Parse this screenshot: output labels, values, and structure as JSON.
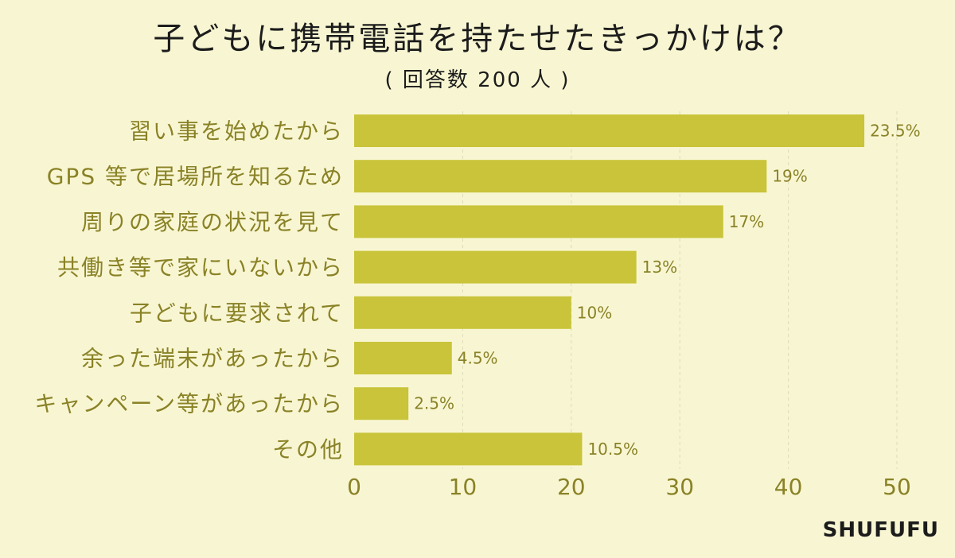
{
  "header": {
    "title": "子どもに携帯電話を持たせたきっかけは？",
    "subtitle": "( 回答数 200 人 )"
  },
  "source": "SHUFUFU",
  "colors": {
    "background": "#f8f6d2",
    "bar": "#c9c43a",
    "label": "#8a8227"
  },
  "chart_data": {
    "type": "bar",
    "orientation": "horizontal",
    "title": "子どもに携帯電話を持たせたきっかけは？",
    "subtitle": "( 回答数 200 人 )",
    "categories": [
      "習い事を始めたから",
      "GPS 等で居場所を知るため",
      "周りの家庭の状況を見て",
      "共働き等で家にいないから",
      "子どもに要求されて",
      "余った端末があったから",
      "キャンペーン等があったから",
      "その他"
    ],
    "values": [
      47,
      38,
      34,
      26,
      20,
      9,
      5,
      21
    ],
    "value_labels": [
      "23.5%",
      "19%",
      "17%",
      "13%",
      "10%",
      "4.5%",
      "2.5%",
      "10.5%"
    ],
    "x_ticks": [
      "0",
      "10",
      "20",
      "30",
      "40",
      "50"
    ],
    "xlim": [
      0,
      50
    ],
    "grid": true
  }
}
